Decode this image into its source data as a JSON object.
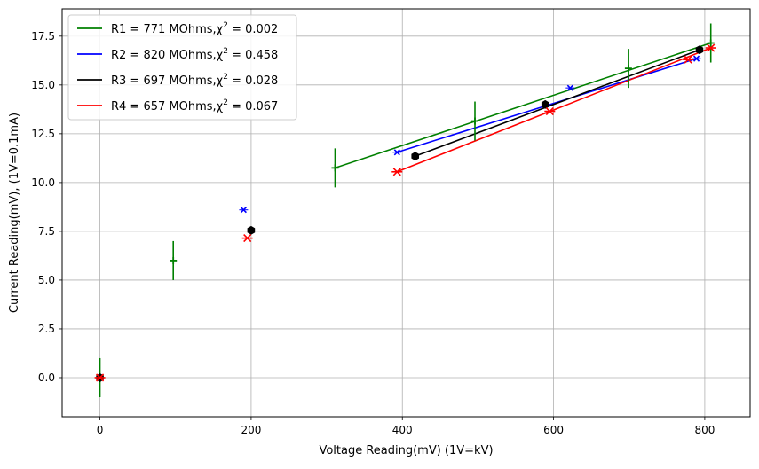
{
  "chart_data": {
    "type": "scatter",
    "title": "",
    "xlabel": "Voltage Reading(mV) (1V=kV)",
    "ylabel": "Current Reading(mV), (1V=0.1mA)",
    "xlim": [
      -50,
      860
    ],
    "ylim": [
      -2.0,
      18.9
    ],
    "xticks": [
      0,
      200,
      400,
      600,
      800
    ],
    "xtick_labels": [
      "0",
      "200",
      "400",
      "600",
      "800"
    ],
    "yticks": [
      0.0,
      2.5,
      5.0,
      7.5,
      10.0,
      12.5,
      15.0,
      17.5
    ],
    "ytick_labels": [
      "0.0",
      "2.5",
      "5.0",
      "7.5",
      "10.0",
      "12.5",
      "15.0",
      "17.5"
    ],
    "grid": true,
    "legend_position": "upper-left",
    "series": [
      {
        "name": "R1 = 771 MOhms,χ² = 0.002",
        "label_main": "R1 = 771 MOhms,",
        "label_chi": "χ",
        "label_exp": "2",
        "label_tail": " = 0.002",
        "color": "#008000",
        "marker": "plus",
        "points": [
          {
            "x": 0,
            "y": 0.0,
            "yerr": 1.0
          },
          {
            "x": 97,
            "y": 6.0,
            "yerr": 1.0
          },
          {
            "x": 311,
            "y": 10.75,
            "yerr": 1.0
          },
          {
            "x": 496,
            "y": 13.15,
            "yerr": 1.0
          },
          {
            "x": 699,
            "y": 15.85,
            "yerr": 1.0
          },
          {
            "x": 808,
            "y": 17.15,
            "yerr": 1.0
          }
        ],
        "fit": [
          [
            311,
            10.75
          ],
          [
            808,
            17.15
          ]
        ]
      },
      {
        "name": "R2 = 820 MOhms,χ² = 0.458",
        "label_main": "R2 = 820 MOhms,",
        "label_chi": "χ",
        "label_exp": "2",
        "label_tail": " = 0.458",
        "color": "#0000ff",
        "marker": "x",
        "points": [
          {
            "x": 0,
            "y": 0.0
          },
          {
            "x": 190,
            "y": 8.6
          },
          {
            "x": 393,
            "y": 11.55
          },
          {
            "x": 622,
            "y": 14.85
          },
          {
            "x": 789,
            "y": 16.35
          }
        ],
        "fit": [
          [
            393,
            11.55
          ],
          [
            789,
            16.35
          ]
        ]
      },
      {
        "name": "R3 = 697 MOhms,χ² = 0.028",
        "label_main": "R3 = 697 MOhms,",
        "label_chi": "χ",
        "label_exp": "2",
        "label_tail": " = 0.028",
        "color": "#000000",
        "marker": "hexagon",
        "points": [
          {
            "x": 0,
            "y": 0.0
          },
          {
            "x": 200,
            "y": 7.55
          },
          {
            "x": 417,
            "y": 11.35
          },
          {
            "x": 589,
            "y": 14.0
          },
          {
            "x": 793,
            "y": 16.8
          }
        ],
        "fit": [
          [
            417,
            11.35
          ],
          [
            793,
            16.8
          ]
        ]
      },
      {
        "name": "R4 = 657 MOhms,χ² = 0.067",
        "label_main": "R4 = 657 MOhms,",
        "label_chi": "χ",
        "label_exp": "2",
        "label_tail": " = 0.067",
        "color": "#ff0000",
        "marker": "star",
        "points": [
          {
            "x": 0,
            "y": 0.0
          },
          {
            "x": 195,
            "y": 7.15
          },
          {
            "x": 393,
            "y": 10.55
          },
          {
            "x": 595,
            "y": 13.65
          },
          {
            "x": 778,
            "y": 16.3
          },
          {
            "x": 808,
            "y": 16.9
          }
        ],
        "fit": [
          [
            393,
            10.55
          ],
          [
            808,
            16.9
          ]
        ]
      }
    ]
  }
}
